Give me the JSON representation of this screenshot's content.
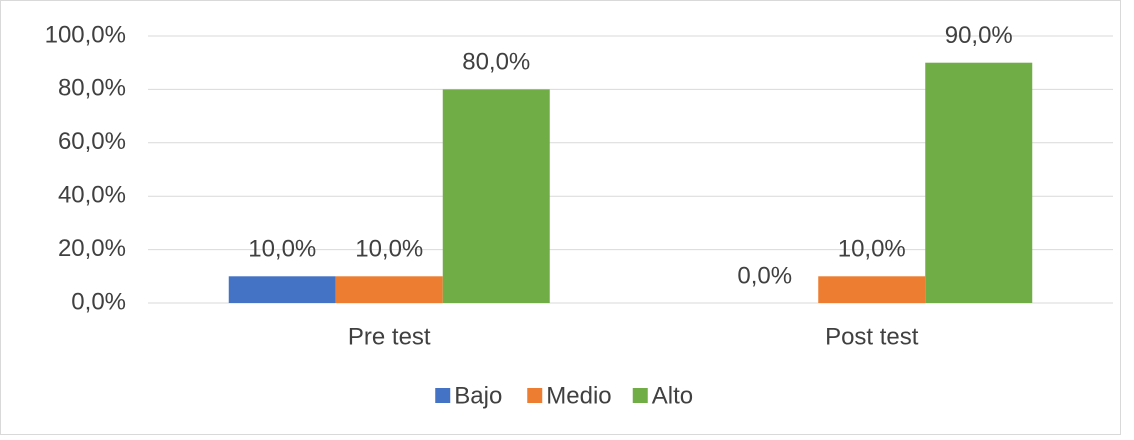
{
  "chart_data": {
    "type": "bar",
    "categories": [
      "Pre test",
      "Post test"
    ],
    "series": [
      {
        "name": "Bajo",
        "color": "#4472c4",
        "values": [
          10,
          0
        ],
        "value_labels": [
          "10,0%",
          "0,0%"
        ]
      },
      {
        "name": "Medio",
        "color": "#ed7d31",
        "values": [
          10,
          10
        ],
        "value_labels": [
          "10,0%",
          "10,0%"
        ]
      },
      {
        "name": "Alto",
        "color": "#70ad47",
        "values": [
          80,
          90
        ],
        "value_labels": [
          "80,0%",
          "90,0%"
        ]
      }
    ],
    "ylim": [
      0,
      100
    ],
    "yticks": [
      {
        "value": 0,
        "label": "0,0%"
      },
      {
        "value": 20,
        "label": "20,0%"
      },
      {
        "value": 40,
        "label": "40,0%"
      },
      {
        "value": 60,
        "label": "60,0%"
      },
      {
        "value": 80,
        "label": "80,0%"
      },
      {
        "value": 100,
        "label": "100,0%"
      }
    ],
    "grid": true,
    "legend": "bottom"
  }
}
